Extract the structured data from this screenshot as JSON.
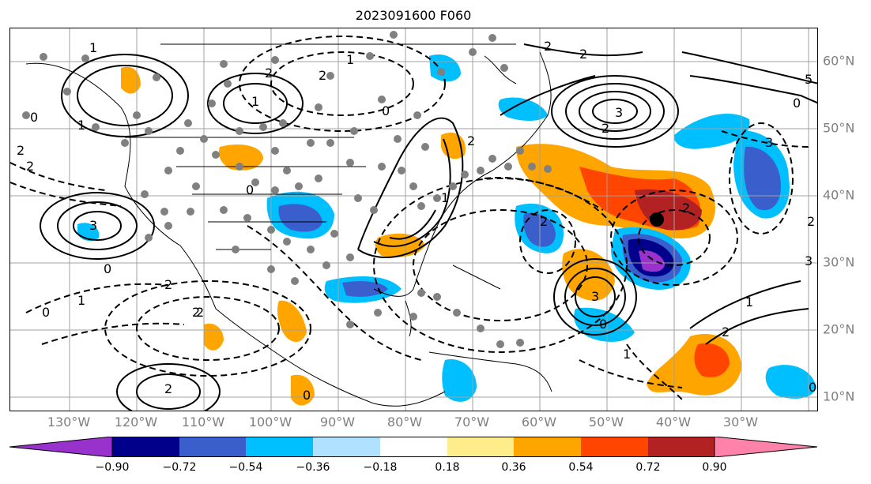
{
  "title": "2023091600 F060",
  "lon_labels": [
    "130°W",
    "120°W",
    "110°W",
    "100°W",
    "90°W",
    "80°W",
    "70°W",
    "60°W",
    "50°W",
    "40°W",
    "30°W"
  ],
  "lat_labels": [
    "60°N",
    "50°N",
    "40°N",
    "30°N",
    "20°N",
    "10°N"
  ],
  "colorbar": {
    "ticks": [
      "−0.90",
      "−0.72",
      "−0.54",
      "−0.36",
      "−0.18",
      "0.18",
      "0.36",
      "0.54",
      "0.72",
      "0.90"
    ],
    "colors": [
      "#9932cc",
      "#00008b",
      "#3a5fcd",
      "#00bfff",
      "#b0e2ff",
      "#ffffff",
      "#ffec8b",
      "#ffa500",
      "#ff4500",
      "#b22222",
      "#ff82ab"
    ]
  },
  "contour_labels": [
    "1",
    "2",
    "1",
    "0",
    "2",
    "1",
    "2",
    "0",
    "3",
    "2",
    "3",
    "2",
    "3",
    "2",
    "0",
    "5",
    "2",
    "0",
    "3",
    "2",
    "2",
    "3",
    "1",
    "2",
    "1",
    "0",
    "2",
    "0",
    "1",
    "2",
    "1",
    "2",
    "2",
    "2",
    "0",
    "1",
    "0",
    "2",
    "0"
  ],
  "colors": {
    "contour": "#000000",
    "grid": "#a0a0a0",
    "station": "#808080",
    "marker": "#000000"
  }
}
